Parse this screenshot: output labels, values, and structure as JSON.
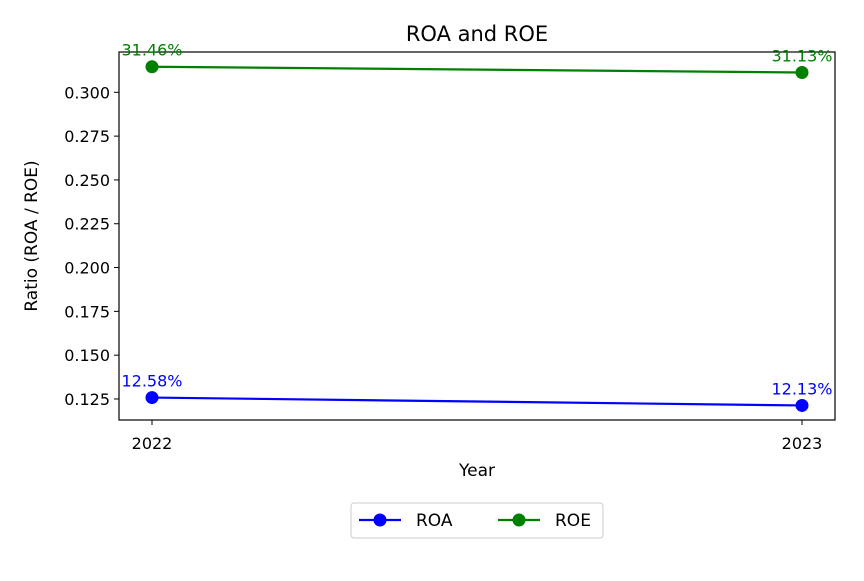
{
  "chart_data": {
    "type": "line",
    "title": "ROA and ROE",
    "xlabel": "Year",
    "ylabel": "Ratio (ROA / ROE)",
    "categories": [
      "2022",
      "2023"
    ],
    "ylim": [
      0.113,
      0.323
    ],
    "yticks": [
      "0.125",
      "0.150",
      "0.175",
      "0.200",
      "0.225",
      "0.250",
      "0.275",
      "0.300"
    ],
    "grid": false,
    "legend_position": "bottom-center",
    "series": [
      {
        "name": "ROA",
        "color": "#0000ff",
        "values": [
          0.1258,
          0.1213
        ],
        "labels": [
          "12.58%",
          "12.13%"
        ]
      },
      {
        "name": "ROE",
        "color": "#008000",
        "values": [
          0.3146,
          0.3113
        ],
        "labels": [
          "31.46%",
          "31.13%"
        ]
      }
    ]
  }
}
